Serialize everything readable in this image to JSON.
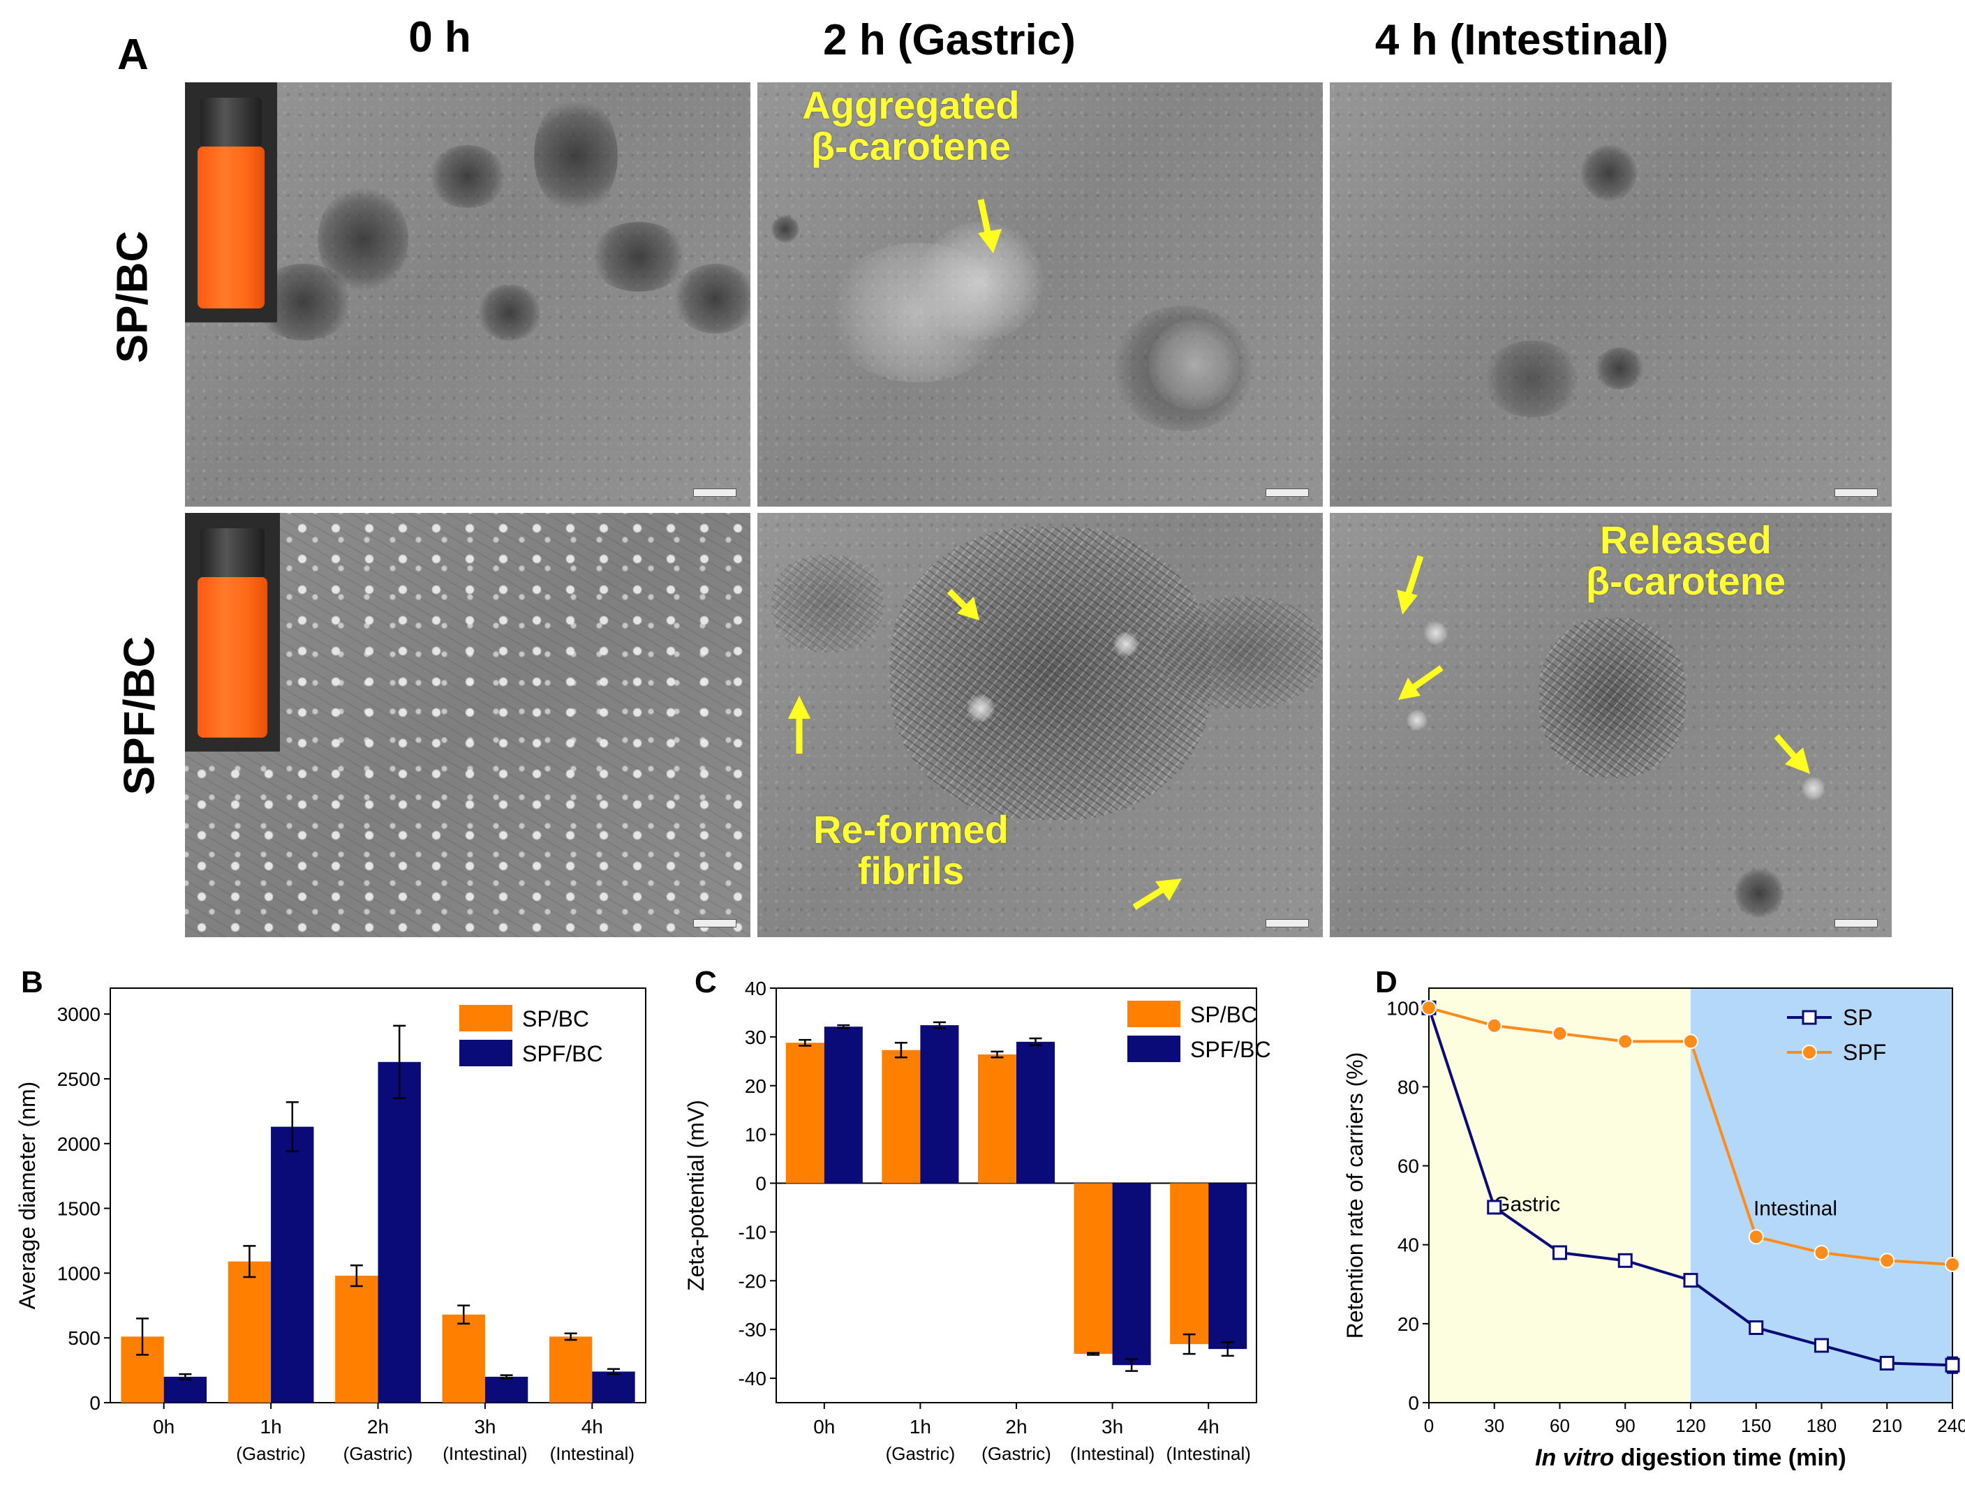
{
  "panel_a": {
    "letter": "A",
    "col_headers": [
      "0 h",
      "2 h (Gastric)",
      "4 h (Intestinal)"
    ],
    "row_headers": [
      "SP/BC",
      "SPF/BC"
    ],
    "annotations": {
      "aggregated": "Aggregated\nβ-carotene",
      "reformed": "Re-formed\nfibrils",
      "released": "Released\nβ-carotene"
    },
    "colors": {
      "annotation": "#ffff33",
      "arrow": "#ffff22"
    }
  },
  "chart_data": [
    {
      "panel": "B",
      "type": "bar",
      "categories": [
        [
          "0h",
          ""
        ],
        [
          "1h",
          "(Gastric)"
        ],
        [
          "2h",
          "(Gastric)"
        ],
        [
          "3h",
          "(Intestinal)"
        ],
        [
          "4h",
          "(Intestinal)"
        ]
      ],
      "series": [
        {
          "name": "SP/BC",
          "color": "#ff8000",
          "values": [
            510,
            1090,
            980,
            680,
            510
          ],
          "errors": [
            140,
            120,
            80,
            70,
            25
          ]
        },
        {
          "name": "SPF/BC",
          "color": "#0a0a78",
          "values": [
            200,
            2130,
            2630,
            200,
            240
          ],
          "errors": [
            20,
            190,
            280,
            12,
            20
          ]
        }
      ],
      "ylabel": "Average diameter (nm)",
      "xlabel": "",
      "ylim": [
        0,
        3200
      ],
      "yticks": [
        0,
        500,
        1000,
        1500,
        2000,
        2500,
        3000
      ],
      "legend_position": "top-right"
    },
    {
      "panel": "C",
      "type": "bar",
      "categories": [
        [
          "0h",
          ""
        ],
        [
          "1h",
          "(Gastric)"
        ],
        [
          "2h",
          "(Gastric)"
        ],
        [
          "3h",
          "(Intestinal)"
        ],
        [
          "4h",
          "(Intestinal)"
        ]
      ],
      "series": [
        {
          "name": "SP/BC",
          "color": "#ff8000",
          "values": [
            28.8,
            27.3,
            26.4,
            -35.0,
            -33.0
          ],
          "errors": [
            0.6,
            1.5,
            0.6,
            0.2,
            2.0
          ]
        },
        {
          "name": "SPF/BC",
          "color": "#0a0a78",
          "values": [
            32.1,
            32.4,
            29.0,
            -37.3,
            -34.0
          ],
          "errors": [
            0.3,
            0.6,
            0.7,
            1.2,
            1.4
          ]
        }
      ],
      "ylabel": "Zeta-potential (mV)",
      "xlabel": "",
      "ylim": [
        -45,
        40
      ],
      "yticks": [
        -40,
        -30,
        -20,
        -10,
        0,
        10,
        20,
        30,
        40
      ],
      "legend_position": "top-right"
    },
    {
      "panel": "D",
      "type": "line",
      "x": [
        0,
        30,
        60,
        90,
        120,
        150,
        180,
        210,
        240
      ],
      "series": [
        {
          "name": "SP",
          "color": "#0a0a78",
          "marker": "square-open",
          "values": [
            100,
            49.5,
            38,
            36,
            31,
            19,
            14.5,
            10,
            9.5
          ],
          "errors": [
            0,
            0,
            1,
            1.5,
            0,
            0,
            0,
            0,
            2
          ]
        },
        {
          "name": "SPF",
          "color": "#ff8c1a",
          "marker": "circle",
          "values": [
            100,
            95.5,
            93.5,
            91.5,
            91.5,
            42,
            38,
            36,
            35
          ],
          "errors": [
            0,
            0,
            0,
            0,
            0,
            0,
            0,
            0,
            0
          ]
        }
      ],
      "xlabel": "In vitro digestion time (min)",
      "xlabel_italic_part": "In vitro",
      "xlabel_rest": " digestion time (min)",
      "ylabel": "Retention rate of carriers (%)",
      "xlim": [
        0,
        240
      ],
      "ylim": [
        0,
        105
      ],
      "xticks": [
        0,
        30,
        60,
        90,
        120,
        150,
        180,
        210,
        240
      ],
      "yticks": [
        0,
        20,
        40,
        60,
        80,
        100
      ],
      "regions": [
        {
          "label": "Gastric",
          "from": 0,
          "to": 120,
          "color": "#fdfde0"
        },
        {
          "label": "Intestinal",
          "from": 120,
          "to": 240,
          "color": "#b4d8fa"
        }
      ],
      "legend_position": "top-right"
    }
  ]
}
